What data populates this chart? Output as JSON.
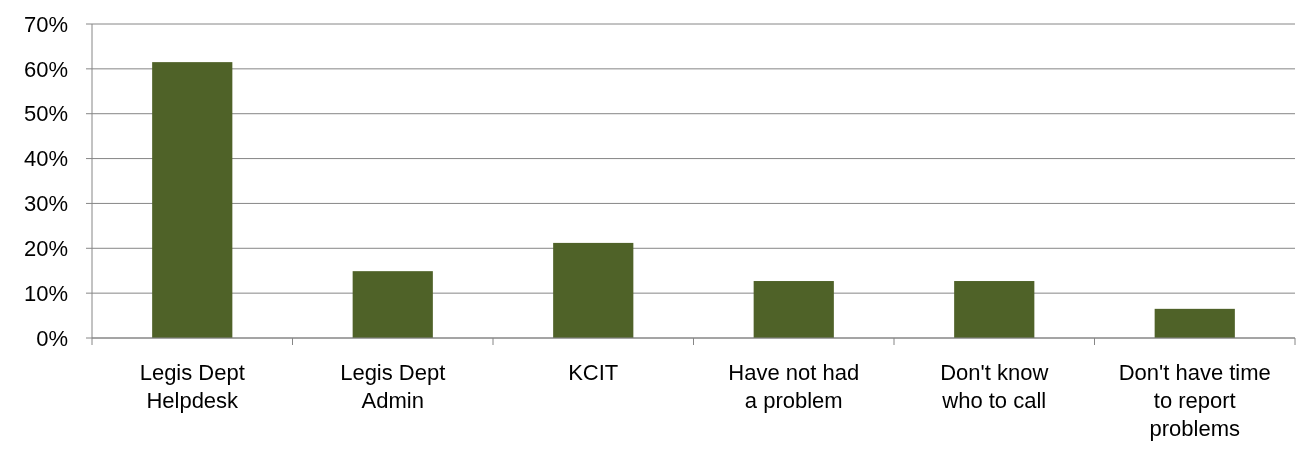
{
  "chart_data": {
    "type": "bar",
    "categories": [
      "Legis Dept\nHelpdesk",
      "Legis Dept\nAdmin",
      "KCIT",
      "Have not had\na problem",
      "Don't know\nwho to call",
      "Don't have time\nto report\nproblems"
    ],
    "values": [
      0.615,
      0.149,
      0.212,
      0.127,
      0.127,
      0.065
    ],
    "color": "#4f6228",
    "ylim": [
      0,
      0.7
    ],
    "yticks": [
      {
        "value": 0,
        "label": "0%"
      },
      {
        "value": 0.1,
        "label": "10%"
      },
      {
        "value": 0.2,
        "label": "20%"
      },
      {
        "value": 0.3,
        "label": "30%"
      },
      {
        "value": 0.4,
        "label": "40%"
      },
      {
        "value": 0.5,
        "label": "50%"
      },
      {
        "value": 0.6,
        "label": "60%"
      },
      {
        "value": 0.7,
        "label": "70%"
      }
    ],
    "grid": "y"
  }
}
